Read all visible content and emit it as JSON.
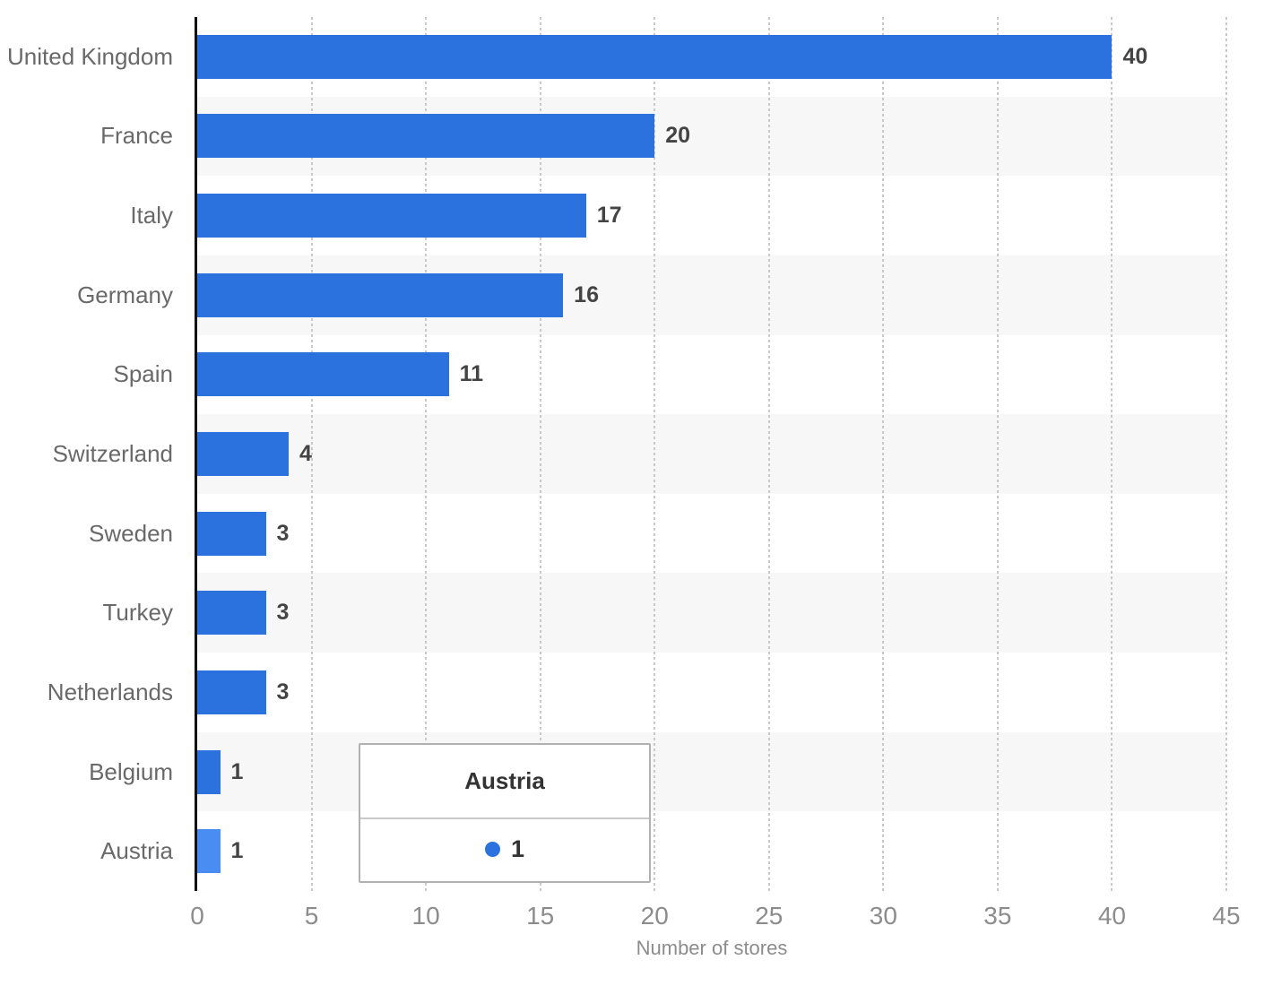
{
  "chart_data": {
    "type": "bar",
    "orientation": "horizontal",
    "categories": [
      "United Kingdom",
      "France",
      "Italy",
      "Germany",
      "Spain",
      "Switzerland",
      "Sweden",
      "Turkey",
      "Netherlands",
      "Belgium",
      "Austria"
    ],
    "values": [
      40,
      20,
      17,
      16,
      11,
      4,
      3,
      3,
      3,
      1,
      1
    ],
    "title": "",
    "xlabel": "Number of stores",
    "ylabel": "",
    "xlim": [
      0,
      45
    ],
    "xticks": [
      0,
      5,
      10,
      15,
      20,
      25,
      30,
      35,
      40,
      45
    ],
    "grid": "vertical dotted gridlines",
    "row_striping": "alternating white and light gray row bands",
    "value_labels_shown": true,
    "highlighted_category": "Austria",
    "legend_position": "none"
  },
  "tooltip": {
    "title": "Austria",
    "value": "1",
    "marker": "blue-dot-icon"
  },
  "colors": {
    "bar": "#2b72de",
    "bar_highlight": "#4a8df2",
    "stripe": "#f7f7f7",
    "grid": "#c9c9c9",
    "axis": "#111111",
    "label": "#696969",
    "value": "#444444",
    "tick": "#8c8c8c",
    "axis_title": "#8c8c8c",
    "tooltip_border": "#b1b1b1",
    "tooltip_divider": "#c9c9c9",
    "tooltip_text": "#333333"
  }
}
